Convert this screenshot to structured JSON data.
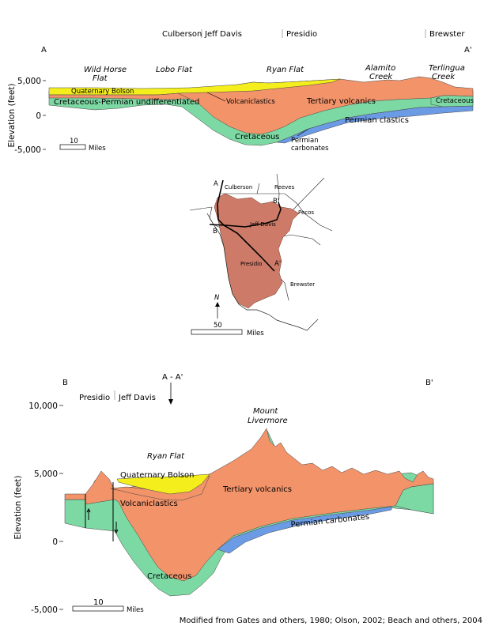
{
  "section_a": {
    "end_left": "A",
    "end_right": "A'",
    "counties": [
      "Culberson",
      "Jeff Davis",
      "Presidio",
      "Brewster"
    ],
    "places": [
      "Wild Horse",
      "Flat",
      "Lobo Flat",
      "Ryan Flat",
      "Alamito",
      "Creek",
      "Terlingua",
      "Creek"
    ],
    "units": {
      "quaternary": "Quaternary Bolson",
      "undiff": "Cretaceous-Permian undifferentiated",
      "volcaniclastics": "Volcaniclastics",
      "tertiary": "Tertiary volcanics",
      "cretaceous": "Cretaceous",
      "cretaceous_right": "Cretaceous",
      "permian_clastics": "Permian clastics",
      "permian_carb_1": "Permian",
      "permian_carb_2": "carbonates"
    },
    "y_title": "Elevation (feet)",
    "y_ticks": [
      "5,000",
      "0",
      "-5,000"
    ],
    "scale_value": "10",
    "scale_unit": "Miles"
  },
  "map": {
    "counties": [
      "Culberson",
      "Reeves",
      "Pecos",
      "Jeff Davis",
      "Presidio",
      "Brewster"
    ],
    "lines": [
      "A",
      "A'",
      "B",
      "B'"
    ],
    "north": "N",
    "scale_value": "50",
    "scale_unit": "Miles"
  },
  "section_b": {
    "end_left": "B",
    "end_right": "B'",
    "counties": [
      "Presidio",
      "Jeff Davis"
    ],
    "crossing": "A - A'",
    "mount_1": "Mount",
    "mount_2": "Livermore",
    "place": "Ryan Flat",
    "units": {
      "quaternary": "Quaternary Bolson",
      "volcaniclastics": "Volcaniclastics",
      "tertiary": "Tertiary volcanics",
      "permian_carb": "Permian carbonates",
      "cretaceous": "Cretaceous"
    },
    "y_title": "Elevation (feet)",
    "y_ticks": [
      "10,000",
      "5,000",
      "0",
      "-5,000"
    ],
    "scale_value": "10",
    "scale_unit": "Miles"
  },
  "credit": "Modified from Gates and others, 1980; Olson, 2002; Beach and others, 2004",
  "colors": {
    "yellow": "#f4ef1c",
    "orange": "#f2936a",
    "green": "#7dd9a3",
    "blue": "#6c9be6",
    "county": "#cd7b68"
  }
}
